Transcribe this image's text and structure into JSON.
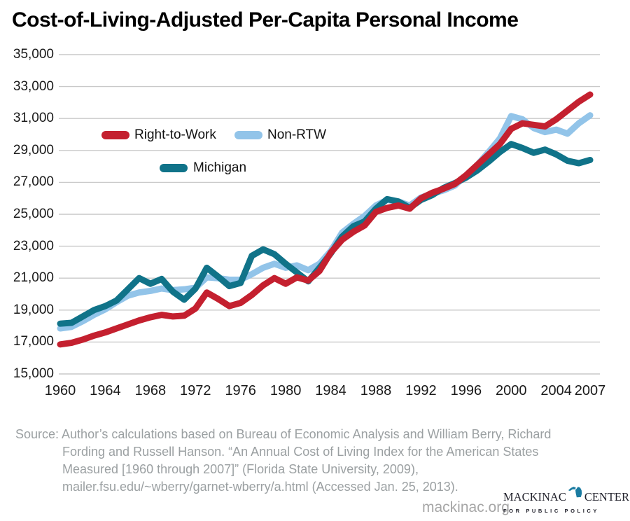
{
  "title": "Cost-of-Living-Adjusted Per-Capita Personal Income",
  "colors": {
    "rtw": "#c4202f",
    "non_rtw": "#92c4e9",
    "michigan": "#107389",
    "gridline": "#c9c9c9"
  },
  "legend": {
    "rtw_label": "Right-to-Work",
    "non_rtw_label": "Non-RTW",
    "michigan_label": "Michigan"
  },
  "chart_data": {
    "type": "line",
    "title": "Cost-of-Living-Adjusted Per-Capita Personal Income",
    "xlabel": "",
    "ylabel": "",
    "ylim": [
      15000,
      35000
    ],
    "ytick_step": 2000,
    "grid": "horizontal",
    "legend_position": "upper-left-inside",
    "ytick_values": [
      35000,
      33000,
      31000,
      29000,
      27000,
      25000,
      23000,
      21000,
      19000,
      17000,
      15000
    ],
    "ytick_labels": [
      "35,000",
      "33,000",
      "31,000",
      "29,000",
      "27,000",
      "25,000",
      "23,000",
      "21,000",
      "19,000",
      "17,000",
      "15,000"
    ],
    "xtick_values": [
      1960,
      1964,
      1968,
      1972,
      1976,
      1980,
      1984,
      1988,
      1992,
      1996,
      2000,
      2004,
      2007
    ],
    "xtick_labels": [
      "1960",
      "1964",
      "1968",
      "1972",
      "1976",
      "1980",
      "1984",
      "1988",
      "1992",
      "1996",
      "2000",
      "2004",
      "2007"
    ],
    "x": [
      1960,
      1961,
      1962,
      1963,
      1964,
      1965,
      1966,
      1967,
      1968,
      1969,
      1970,
      1971,
      1972,
      1973,
      1974,
      1975,
      1976,
      1977,
      1978,
      1979,
      1980,
      1981,
      1982,
      1983,
      1984,
      1985,
      1986,
      1987,
      1988,
      1989,
      1990,
      1991,
      1992,
      1993,
      1994,
      1995,
      1996,
      1997,
      1998,
      1999,
      2000,
      2001,
      2002,
      2003,
      2004,
      2005,
      2006,
      2007
    ],
    "series": [
      {
        "name": "Non-RTW",
        "color": "#92c4e9",
        "values": [
          17850,
          17950,
          18300,
          18700,
          19050,
          19500,
          19900,
          20100,
          20200,
          20350,
          20250,
          20300,
          20400,
          21050,
          21000,
          20900,
          20900,
          21250,
          21650,
          21900,
          21650,
          21800,
          21500,
          21900,
          22700,
          23850,
          24400,
          24900,
          25550,
          25900,
          25800,
          25550,
          26050,
          26300,
          26500,
          26800,
          27450,
          28100,
          28900,
          29750,
          31150,
          30950,
          30400,
          30150,
          30300,
          30050,
          30700,
          31200
        ]
      },
      {
        "name": "Michigan",
        "color": "#107389",
        "values": [
          18150,
          18200,
          18600,
          19000,
          19250,
          19600,
          20300,
          21000,
          20650,
          20950,
          20150,
          19650,
          20350,
          21650,
          21100,
          20500,
          20700,
          22400,
          22800,
          22500,
          21900,
          21350,
          20800,
          21650,
          22550,
          23600,
          24250,
          24550,
          25350,
          25950,
          25800,
          25400,
          25900,
          26200,
          26650,
          26950,
          27300,
          27750,
          28300,
          28900,
          29400,
          29150,
          28850,
          29050,
          28750,
          28350,
          28200,
          28400
        ]
      },
      {
        "name": "Right-to-Work",
        "color": "#c4202f",
        "values": [
          16850,
          16950,
          17150,
          17400,
          17600,
          17850,
          18100,
          18350,
          18550,
          18700,
          18600,
          18650,
          19100,
          20100,
          19700,
          19250,
          19450,
          19950,
          20550,
          21000,
          20650,
          21050,
          20850,
          21450,
          22600,
          23400,
          23900,
          24300,
          25150,
          25400,
          25550,
          25350,
          26000,
          26350,
          26600,
          26900,
          27450,
          28100,
          28750,
          29400,
          30350,
          30700,
          30600,
          30500,
          30950,
          31500,
          32050,
          32500
        ]
      }
    ]
  },
  "source": {
    "line1": "Source: Author’s calculations based on Bureau of Economic Analysis and William Berry, Richard",
    "line2": "Fording and Russell Hanson. “An Annual Cost of Living Index for the American States",
    "line3": "Measured [1960 through 2007]” (Florida State University, 2009),",
    "line4": "mailer.fsu.edu/~wberry/garnet-wberry/a.html (Accessed Jan. 25, 2013)."
  },
  "footer": {
    "site": "mackinac.org",
    "logo_left": "MACKINAC",
    "logo_right": "CENTER",
    "logo_tagline": "FOR PUBLIC POLICY"
  }
}
